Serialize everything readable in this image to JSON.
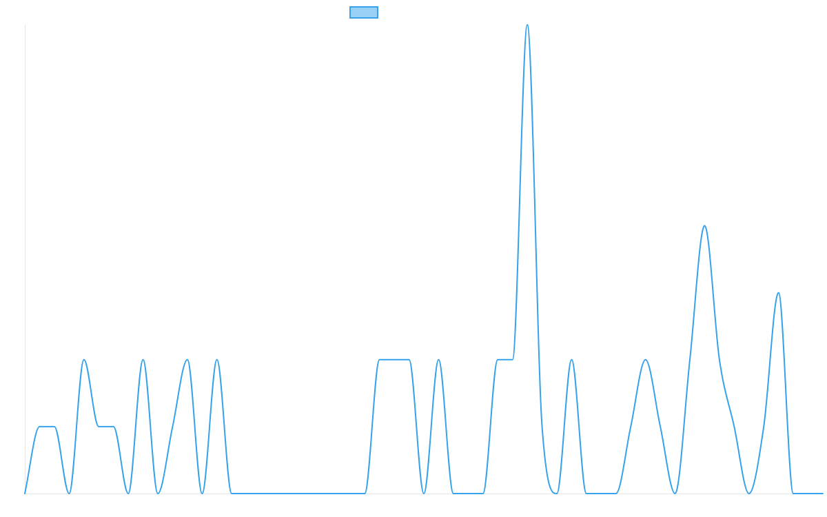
{
  "chart_data": {
    "type": "line",
    "title": "",
    "xlabel": "",
    "ylabel": "",
    "x": [
      1,
      2,
      3,
      4,
      5,
      6,
      7,
      8,
      9,
      10,
      11,
      12,
      13,
      14,
      15,
      16,
      17,
      18,
      19,
      20,
      21,
      22,
      23,
      24,
      25,
      26,
      27,
      28,
      29,
      30,
      31,
      32,
      33,
      34,
      35,
      36,
      37,
      38,
      39,
      40,
      41,
      42,
      43,
      44,
      45,
      46,
      47,
      48,
      49,
      50,
      51,
      52,
      53,
      54,
      55
    ],
    "ylim": [
      0,
      7
    ],
    "grid": false,
    "legend": {
      "position": "top-center",
      "entries": [
        ""
      ]
    },
    "series": [
      {
        "values": [
          0,
          1,
          1,
          0,
          2,
          1,
          1,
          0,
          2,
          0,
          1,
          2,
          0,
          2,
          0,
          0,
          0,
          0,
          0,
          0,
          0,
          0,
          0,
          0,
          2,
          2,
          2,
          0,
          2,
          0,
          0,
          0,
          2,
          2,
          7,
          1,
          0,
          2,
          0,
          0,
          0,
          1,
          2,
          1,
          0,
          2,
          4,
          2,
          1,
          0,
          1,
          3,
          0,
          0,
          0
        ],
        "color": "#36a2eb",
        "fill": "#9ad0f5"
      }
    ]
  }
}
